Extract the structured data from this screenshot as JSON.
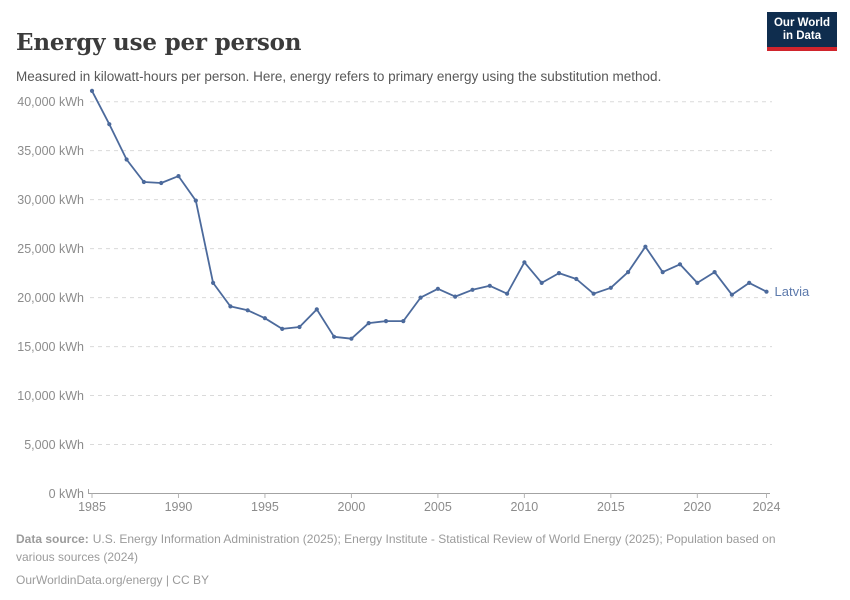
{
  "header": {
    "title": "Energy use per person",
    "subtitle": "Measured in kilowatt-hours per person. Here, energy refers to primary energy using the substitution method."
  },
  "logo": {
    "line1": "Our World",
    "line2": "in Data"
  },
  "chart_data": {
    "type": "line",
    "title": "Energy use per person",
    "unit": "kWh",
    "series_label": "Latvia",
    "x": [
      1985,
      1986,
      1987,
      1988,
      1989,
      1990,
      1991,
      1992,
      1993,
      1994,
      1995,
      1996,
      1997,
      1998,
      1999,
      2000,
      2001,
      2002,
      2003,
      2004,
      2005,
      2006,
      2007,
      2008,
      2009,
      2010,
      2011,
      2012,
      2013,
      2014,
      2015,
      2016,
      2017,
      2018,
      2019,
      2020,
      2021,
      2022,
      2023,
      2024
    ],
    "values": [
      41100,
      37700,
      34100,
      31800,
      31700,
      32400,
      29900,
      21500,
      19100,
      18700,
      17900,
      16800,
      17000,
      18800,
      16000,
      15800,
      17400,
      17600,
      17600,
      20000,
      20900,
      20100,
      20800,
      21200,
      20400,
      23600,
      21500,
      22500,
      21900,
      20400,
      21000,
      22600,
      25200,
      22600,
      23400,
      21500,
      22600,
      20300,
      21500,
      20600
    ],
    "xticks": [
      1985,
      1990,
      1995,
      2000,
      2005,
      2010,
      2015,
      2020,
      2024
    ],
    "yticks": [
      0,
      5000,
      10000,
      15000,
      20000,
      25000,
      30000,
      35000,
      40000
    ],
    "xlim": [
      1985,
      2024
    ],
    "ylim": [
      0,
      40000
    ],
    "grid": "dashed-horizontal",
    "legend_position": "end-of-line"
  },
  "colors": {
    "line": "#4c6a9c",
    "series_label": "#5d7aac",
    "grid": "#dadada",
    "axis": "#a3a3a3",
    "tick": "#b5b5b5",
    "tick_label": "#8c8c8c",
    "logo_bg": "#0f2d4e",
    "logo_accent": "#d0242c"
  },
  "footer": {
    "source_label": "Data source:",
    "source_text": "U.S. Energy Information Administration (2025); Energy Institute - Statistical Review of World Energy (2025); Population based on various sources (2024)",
    "license_text": "OurWorldinData.org/energy | CC BY"
  }
}
